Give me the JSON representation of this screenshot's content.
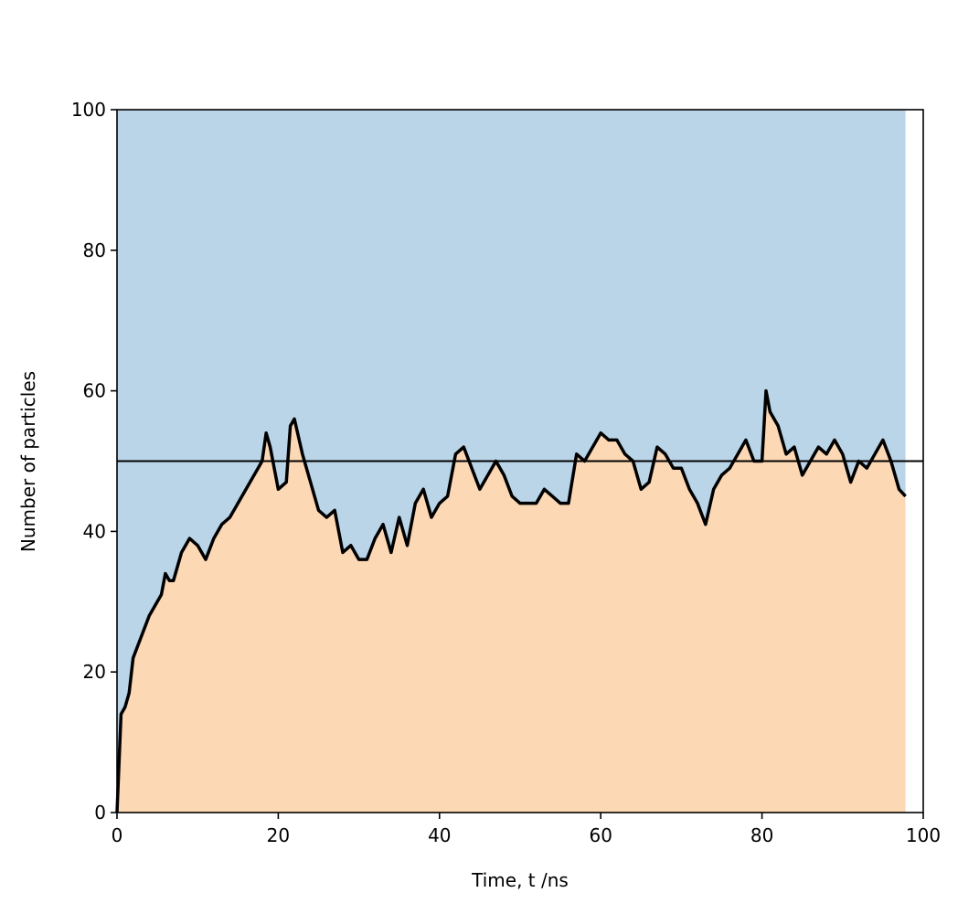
{
  "chart_data": {
    "type": "line",
    "xlabel": "Time, t /ns",
    "ylabel": "Number of particles",
    "x": [
      0,
      0.5,
      1,
      1.5,
      2,
      3,
      4,
      5,
      5.5,
      6,
      6.5,
      7,
      8,
      9,
      10,
      11,
      12,
      13,
      14,
      15,
      16,
      17,
      18,
      18.5,
      19,
      20,
      21,
      21.5,
      22,
      23,
      24,
      25,
      26,
      27,
      28,
      29,
      30,
      31,
      32,
      33,
      34,
      35,
      36,
      37,
      38,
      39,
      40,
      41,
      42,
      43,
      44,
      45,
      46,
      47,
      48,
      49,
      50,
      51,
      52,
      53,
      54,
      55,
      56,
      57,
      58,
      59,
      60,
      61,
      62,
      63,
      64,
      65,
      66,
      67,
      68,
      69,
      70,
      71,
      72,
      73,
      74,
      75,
      76,
      77,
      78,
      79,
      80,
      80.5,
      81,
      82,
      83,
      84,
      85,
      86,
      87,
      88,
      89,
      90,
      91,
      92,
      93,
      94,
      95,
      96,
      97,
      97.8
    ],
    "series": [
      {
        "color": "#000000",
        "values": [
          0,
          14,
          15,
          17,
          22,
          25,
          28,
          30,
          31,
          34,
          33,
          33,
          37,
          39,
          38,
          36,
          39,
          41,
          42,
          44,
          46,
          48,
          50,
          54,
          52,
          46,
          47,
          55,
          56,
          51,
          47,
          43,
          42,
          43,
          37,
          38,
          36,
          36,
          39,
          41,
          37,
          42,
          38,
          44,
          46,
          42,
          44,
          45,
          51,
          52,
          49,
          46,
          48,
          50,
          48,
          45,
          44,
          44,
          44,
          46,
          45,
          44,
          44,
          51,
          50,
          52,
          54,
          53,
          53,
          51,
          50,
          46,
          47,
          52,
          51,
          49,
          49,
          46,
          44,
          41,
          46,
          48,
          49,
          51,
          53,
          50,
          50,
          60,
          57,
          55,
          51,
          52,
          48,
          50,
          52,
          51,
          53,
          51,
          47,
          50,
          49,
          51,
          53,
          50,
          46,
          45
        ]
      }
    ],
    "fill_below": "#fdd8b5",
    "fill_above": "#bad5e8",
    "hline": 50,
    "xlim": [
      0,
      100
    ],
    "ylim": [
      0,
      100
    ],
    "xticks": [
      0,
      20,
      40,
      60,
      80,
      100
    ],
    "yticks": [
      0,
      20,
      40,
      60,
      80,
      100
    ]
  }
}
